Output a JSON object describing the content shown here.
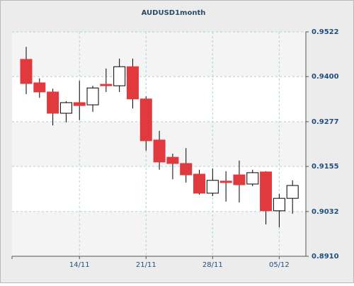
{
  "chart_data": {
    "type": "candlestick",
    "title": "AUDUSD1month",
    "categories": [
      null,
      null,
      null,
      null,
      "14/11",
      null,
      null,
      null,
      null,
      "21/11",
      null,
      null,
      null,
      null,
      "28/11",
      null,
      null,
      null,
      null,
      "05/12",
      null
    ],
    "open": [
      0.9447,
      0.9383,
      0.9358,
      0.93,
      0.9329,
      0.9323,
      0.9379,
      0.9375,
      0.9427,
      0.9339,
      0.9227,
      0.918,
      0.9163,
      0.9134,
      0.9082,
      0.9115,
      0.9132,
      0.9107,
      0.914,
      0.9034,
      0.9068
    ],
    "high": [
      0.9481,
      0.9395,
      0.9367,
      0.9333,
      0.9389,
      0.9375,
      0.9422,
      0.9449,
      0.9449,
      0.9346,
      0.9252,
      0.919,
      0.9205,
      0.9146,
      0.9149,
      0.9142,
      0.9171,
      0.9146,
      0.9142,
      0.908,
      0.9117
    ],
    "low": [
      0.9352,
      0.9342,
      0.9267,
      0.9275,
      0.9281,
      0.9304,
      0.9358,
      0.9358,
      0.9313,
      0.9198,
      0.9146,
      0.912,
      0.9111,
      0.9078,
      0.9074,
      0.9059,
      0.9057,
      0.9101,
      0.8997,
      0.8989,
      0.9026
    ],
    "close": [
      0.9381,
      0.9358,
      0.93,
      0.9329,
      0.9321,
      0.9369,
      0.9375,
      0.9427,
      0.9339,
      0.9225,
      0.9167,
      0.9163,
      0.9132,
      0.9082,
      0.9117,
      0.9111,
      0.9105,
      0.9138,
      0.9034,
      0.9068,
      0.9103
    ],
    "up_color": "#ffffff",
    "down_color": "#e0393e",
    "ylim": [
      0.891,
      0.9522
    ],
    "yticks": [
      {
        "value": 0.891,
        "label": "0.8910"
      },
      0.9032,
      0.9155,
      0.9277,
      {
        "value": 0.94,
        "label": "0.9400"
      },
      0.9522
    ],
    "grid": true
  }
}
